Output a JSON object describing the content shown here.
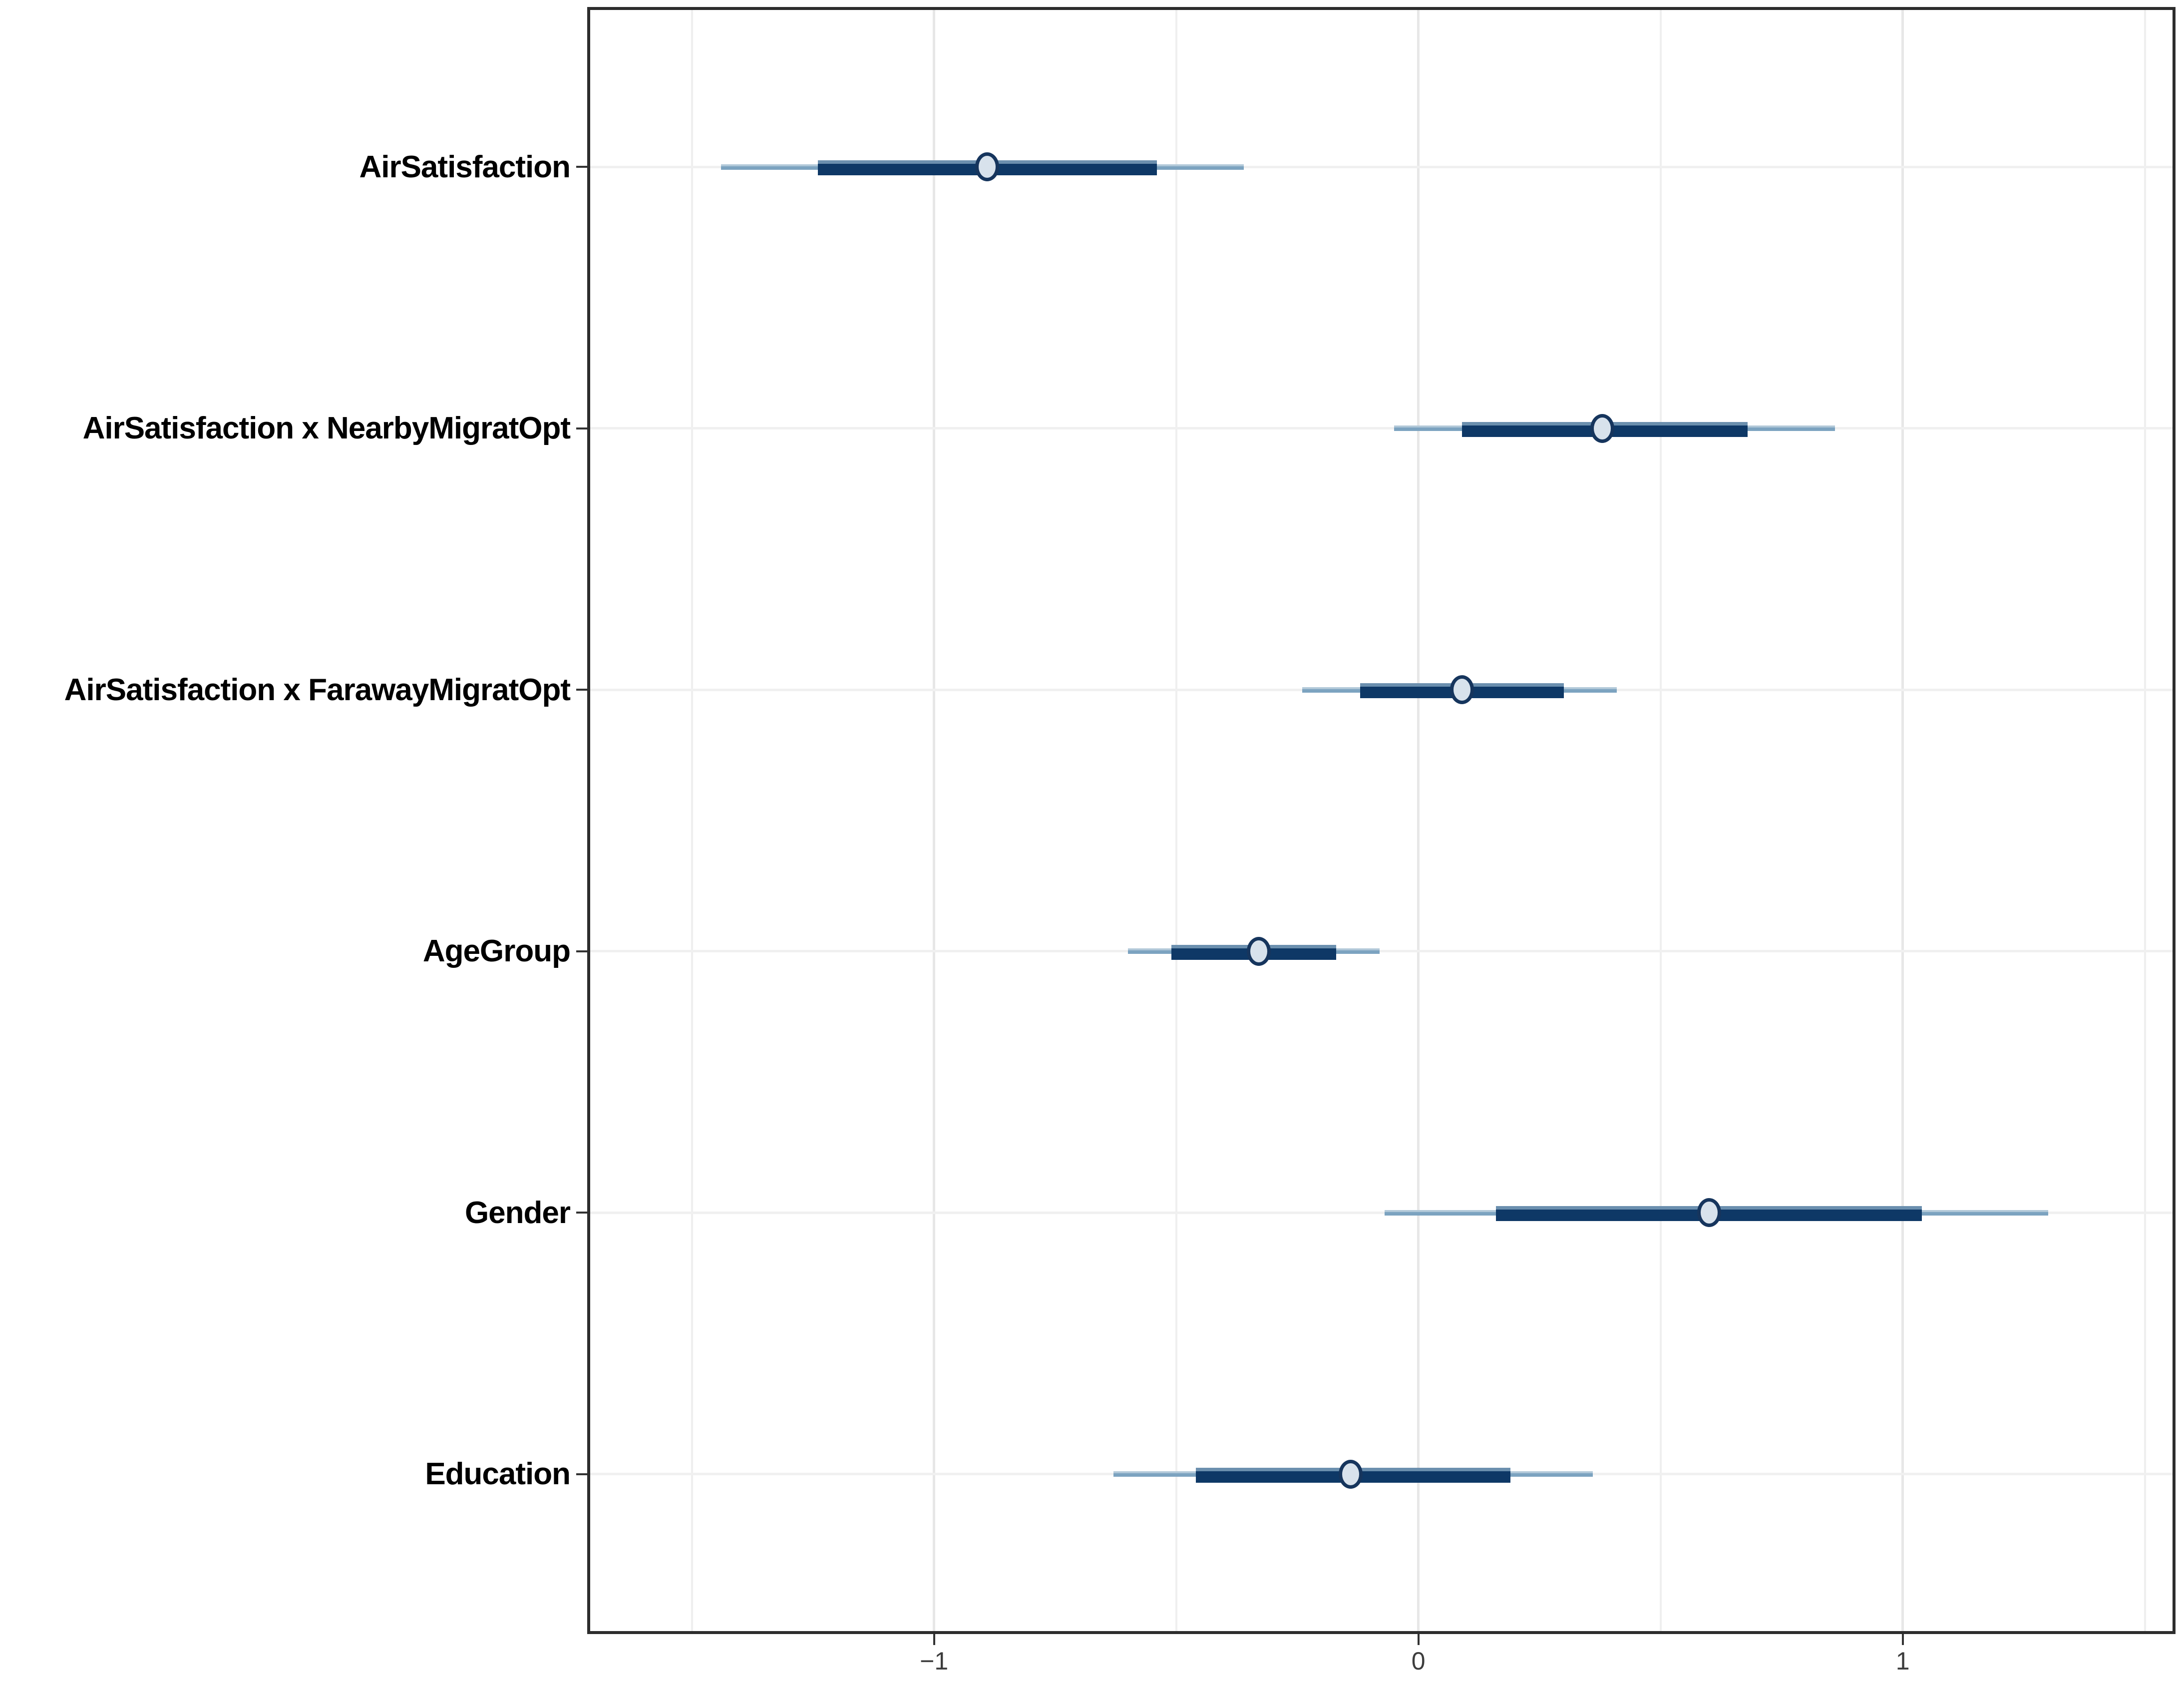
{
  "chart_data": {
    "type": "interval",
    "subtype": "coefficient-forest-plot",
    "title": "",
    "xlabel": "",
    "ylabel": "",
    "x_axis": {
      "range": [
        -1.71,
        1.557
      ],
      "tick_values": [
        -1,
        0,
        1
      ],
      "tick_labels": [
        "−1",
        "0",
        "1"
      ],
      "major_gridlines": [
        -1,
        0,
        1
      ],
      "minor_gridlines": [
        -1.5,
        -0.5,
        0.5,
        1.5
      ],
      "grid": "on",
      "legend": "none"
    },
    "rows": [
      {
        "label": "AirSatisfaction",
        "point": -0.89,
        "inner": [
          -1.24,
          -0.54
        ],
        "outer": [
          -1.44,
          -0.36
        ]
      },
      {
        "label": "AirSatisfaction x NearbyMigratOpt",
        "point": 0.38,
        "inner": [
          0.09,
          0.68
        ],
        "outer": [
          -0.05,
          0.86
        ]
      },
      {
        "label": "AirSatisfaction x FarawayMigratOpt",
        "point": 0.09,
        "inner": [
          -0.12,
          0.3
        ],
        "outer": [
          -0.24,
          0.41
        ]
      },
      {
        "label": "AgeGroup",
        "point": -0.33,
        "inner": [
          -0.51,
          -0.17
        ],
        "outer": [
          -0.6,
          -0.08
        ]
      },
      {
        "label": "Gender",
        "point": 0.6,
        "inner": [
          0.16,
          1.04
        ],
        "outer": [
          -0.07,
          1.3
        ]
      },
      {
        "label": "Education",
        "point": -0.14,
        "inner": [
          -0.46,
          0.19
        ],
        "outer": [
          -0.63,
          0.36
        ]
      }
    ]
  },
  "colors": {
    "panel_border": "#2d2d2d",
    "grid_major": "#e7e7e7",
    "grid_minor": "#efefef",
    "grid_horiz": "#f0f0f0",
    "outer_line": "#7ca3c0",
    "outer_line_top": "#b1c8d8",
    "inner_bar": "#0e3866",
    "inner_bar_top": "#6b8fae",
    "point_fill": "#d8e2ec",
    "point_border": "#16355d",
    "tick": "#333333",
    "tick_label": "#3d3d3d",
    "row_label": "#000000"
  }
}
